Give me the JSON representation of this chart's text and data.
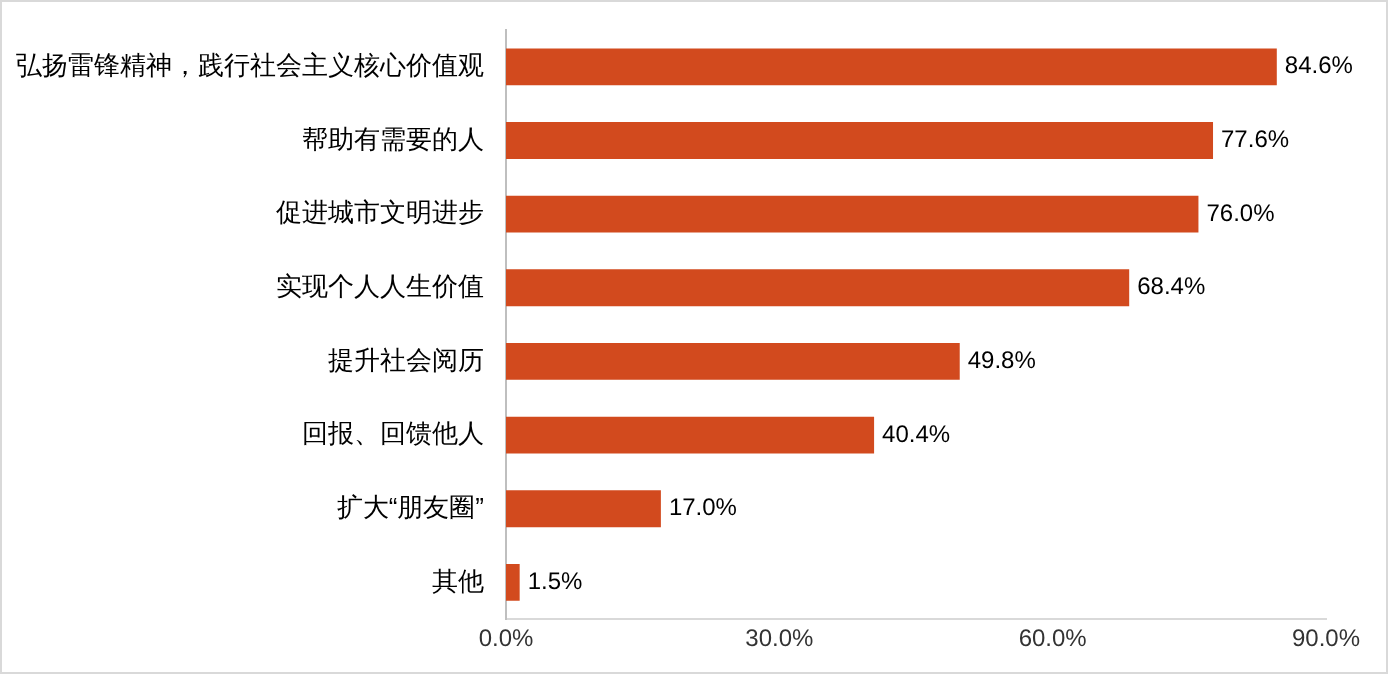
{
  "chart_data": {
    "type": "bar",
    "orientation": "horizontal",
    "categories": [
      "弘扬雷锋精神，践行社会主义核心价值观",
      "帮助有需要的人",
      "促进城市文明进步",
      "实现个人人生价值",
      "提升社会阅历",
      "回报、回馈他人",
      "扩大“朋友圈”",
      "其他"
    ],
    "values": [
      84.6,
      77.6,
      76.0,
      68.4,
      49.8,
      40.4,
      17.0,
      1.5
    ],
    "value_labels": [
      "84.6%",
      "77.6%",
      "76.0%",
      "68.4%",
      "49.8%",
      "40.4%",
      "17.0%",
      "1.5%"
    ],
    "color": "#d24a1e",
    "xlim": [
      0,
      90
    ],
    "xticks": [
      {
        "value": 0,
        "label": "0.0%"
      },
      {
        "value": 30,
        "label": "30.0%"
      },
      {
        "value": 60,
        "label": "60.0%"
      },
      {
        "value": 90,
        "label": "90.0%"
      }
    ],
    "grid": false,
    "legend": false
  }
}
